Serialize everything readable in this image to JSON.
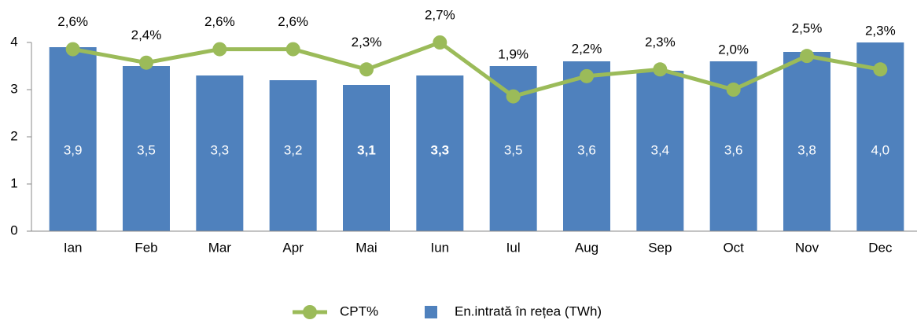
{
  "chart_data": {
    "type": "bar-line",
    "categories": [
      "Ian",
      "Feb",
      "Mar",
      "Apr",
      "Mai",
      "Iun",
      "Iul",
      "Aug",
      "Sep",
      "Oct",
      "Nov",
      "Dec"
    ],
    "series": [
      {
        "name": "En.intrată în rețea (TWh)",
        "type": "bar",
        "color": "#4f81bd",
        "values": [
          3.9,
          3.5,
          3.3,
          3.2,
          3.1,
          3.3,
          3.5,
          3.6,
          3.4,
          3.6,
          3.8,
          4.0
        ],
        "value_labels": [
          "3,9",
          "3,5",
          "3,3",
          "3,2",
          "3,1",
          "3,3",
          "3,5",
          "3,6",
          "3,4",
          "3,6",
          "3,8",
          "4,0"
        ]
      },
      {
        "name": "CPT%",
        "type": "line",
        "axis": "y2",
        "color": "#9bbb59",
        "values": [
          2.6,
          2.4,
          2.6,
          2.6,
          2.3,
          2.7,
          1.9,
          2.2,
          2.3,
          2.0,
          2.5,
          2.3
        ],
        "value_labels": [
          "2,6%",
          "2,4%",
          "2,6%",
          "2,6%",
          "2,3%",
          "2,7%",
          "1,9%",
          "2,2%",
          "2,3%",
          "2,0%",
          "2,5%",
          "2,3%"
        ]
      }
    ],
    "ylim": [
      0,
      4
    ],
    "yticks": [
      0,
      1,
      2,
      3,
      4
    ],
    "y2lim": [
      -0.1,
      2.7
    ]
  }
}
